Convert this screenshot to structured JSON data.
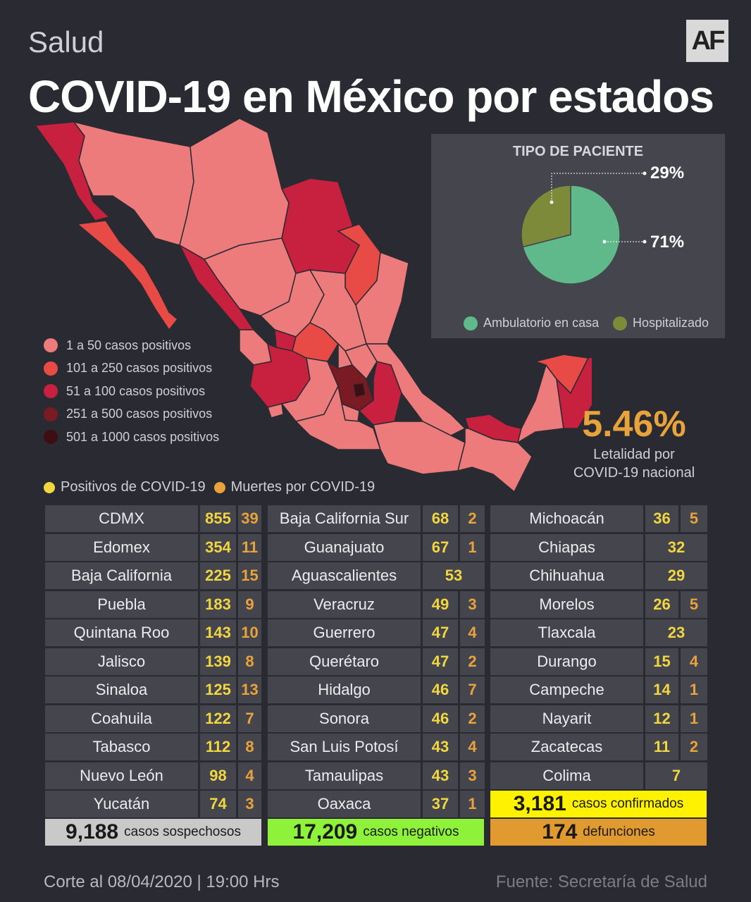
{
  "header": {
    "section": "Salud",
    "logo": "AF",
    "title": "COVID-19 en México por estados"
  },
  "colors": {
    "background": "#2a2a32",
    "cell": "#45454d",
    "positive": "#f2d640",
    "deaths": "#e8a33a",
    "tier1": "#ee7b7b",
    "tier2": "#e84b46",
    "tier3": "#c8203f",
    "tier4": "#7a1a22",
    "tier5": "#3d0e12"
  },
  "map_legend": [
    {
      "label": "1 a 50 casos positivos",
      "color": "#ee7b7b"
    },
    {
      "label": "101 a 250 casos positivos",
      "color": "#e84b46"
    },
    {
      "label": "51 a 100 casos positivos",
      "color": "#c8203f"
    },
    {
      "label": "251 a 500 casos positivos",
      "color": "#7a1a22"
    },
    {
      "label": "501 a 1000 casos positivos",
      "color": "#3d0e12"
    }
  ],
  "patient_type": {
    "title": "TIPO DE PACIENTE",
    "legend": [
      {
        "label": "Ambulatorio en casa",
        "color": "#5fb98a"
      },
      {
        "label": "Hospitalizado",
        "color": "#7d8a3a"
      }
    ]
  },
  "chart_data": {
    "type": "pie",
    "title": "TIPO DE PACIENTE",
    "slices": [
      {
        "label": "Ambulatorio en casa",
        "value": 71,
        "display": "71%",
        "color": "#5fb98a"
      },
      {
        "label": "Hospitalizado",
        "value": 29,
        "display": "29%",
        "color": "#7d8a3a"
      }
    ]
  },
  "letalidad": {
    "value": "5.46%",
    "label_line1": "Letalidad por",
    "label_line2": "COVID-19 nacional"
  },
  "data_legend": {
    "positives": "Positivos de COVID-19",
    "deaths": "Muertes por COVID-19"
  },
  "states": [
    [
      {
        "name": "CDMX",
        "pos": "855",
        "dead": "39"
      },
      {
        "name": "Edomex",
        "pos": "354",
        "dead": "11"
      },
      {
        "name": "Baja California",
        "pos": "225",
        "dead": "15"
      },
      {
        "name": "Puebla",
        "pos": "183",
        "dead": "9"
      },
      {
        "name": "Quintana Roo",
        "pos": "143",
        "dead": "10"
      },
      {
        "name": "Jalisco",
        "pos": "139",
        "dead": "8"
      },
      {
        "name": "Sinaloa",
        "pos": "125",
        "dead": "13"
      },
      {
        "name": "Coahuila",
        "pos": "122",
        "dead": "7"
      },
      {
        "name": "Tabasco",
        "pos": "112",
        "dead": "8"
      },
      {
        "name": "Nuevo León",
        "pos": "98",
        "dead": "4"
      },
      {
        "name": "Yucatán",
        "pos": "74",
        "dead": "3"
      }
    ],
    [
      {
        "name": "Baja California Sur",
        "pos": "68",
        "dead": "2"
      },
      {
        "name": "Guanajuato",
        "pos": "67",
        "dead": "1"
      },
      {
        "name": "Aguascalientes",
        "pos": "53",
        "dead": ""
      },
      {
        "name": "Veracruz",
        "pos": "49",
        "dead": "3"
      },
      {
        "name": "Guerrero",
        "pos": "47",
        "dead": "4"
      },
      {
        "name": "Querétaro",
        "pos": "47",
        "dead": "2"
      },
      {
        "name": "Hidalgo",
        "pos": "46",
        "dead": "7"
      },
      {
        "name": "Sonora",
        "pos": "46",
        "dead": "2"
      },
      {
        "name": "San Luis Potosí",
        "pos": "43",
        "dead": "4"
      },
      {
        "name": "Tamaulipas",
        "pos": "43",
        "dead": "3"
      },
      {
        "name": "Oaxaca",
        "pos": "37",
        "dead": "1"
      }
    ],
    [
      {
        "name": "Michoacán",
        "pos": "36",
        "dead": "5"
      },
      {
        "name": "Chiapas",
        "pos": "32",
        "dead": ""
      },
      {
        "name": "Chihuahua",
        "pos": "29",
        "dead": ""
      },
      {
        "name": "Morelos",
        "pos": "26",
        "dead": "5"
      },
      {
        "name": "Tlaxcala",
        "pos": "23",
        "dead": ""
      },
      {
        "name": "Durango",
        "pos": "15",
        "dead": "4"
      },
      {
        "name": "Campeche",
        "pos": "14",
        "dead": "1"
      },
      {
        "name": "Nayarit",
        "pos": "12",
        "dead": "1"
      },
      {
        "name": "Zacatecas",
        "pos": "11",
        "dead": "2"
      },
      {
        "name": "Colima",
        "pos": "7",
        "dead": ""
      }
    ]
  ],
  "summary": {
    "confirmed": {
      "value": "3,181",
      "label": "casos confirmados",
      "color": "#fff200"
    },
    "suspected": {
      "value": "9,188",
      "label": "casos sospechosos",
      "color": "#c9c9c9"
    },
    "negative": {
      "value": "17,209",
      "label": "casos negativos",
      "color": "#8ff23a"
    },
    "deaths": {
      "value": "174",
      "label": "defunciones",
      "color": "#e09a2f"
    }
  },
  "footer": {
    "cutoff": "Corte al 08/04/2020 | 19:00 Hrs",
    "source": "Fuente: Secretaría de Salud"
  }
}
